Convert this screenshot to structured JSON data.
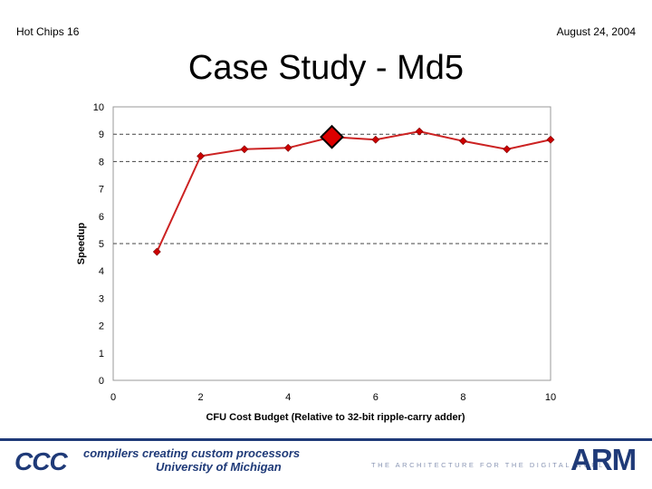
{
  "header": {
    "left": "Hot Chips 16",
    "right": "August 24, 2004"
  },
  "slide_title": "Case Study - Md5",
  "footer": {
    "logo_ccc": "CCC",
    "line1": "compilers creating custom processors",
    "line2": "University of Michigan",
    "tagline": "THE ARCHITECTURE FOR THE DIGITAL WORLD",
    "arm": "ARM"
  },
  "colors": {
    "line": "#cc2222",
    "marker": "#cc0000",
    "highlight": "#dd0000",
    "footer_blue": "#1f3a78"
  },
  "chart_data": {
    "type": "line",
    "title": "",
    "xlabel": "CFU Cost Budget (Relative to 32-bit ripple-carry adder)",
    "ylabel": "Speedup",
    "xlim": [
      0,
      10
    ],
    "ylim": [
      0,
      10
    ],
    "x_ticks": [
      0,
      2,
      4,
      6,
      8,
      10
    ],
    "y_ticks": [
      0,
      1,
      2,
      3,
      4,
      5,
      6,
      7,
      8,
      9,
      10
    ],
    "dashed_gridlines_y": [
      5,
      8,
      9
    ],
    "grid": false,
    "series": [
      {
        "x": [
          1,
          2,
          3,
          4,
          5,
          6,
          7,
          8,
          9,
          10
        ],
        "y": [
          4.7,
          8.2,
          8.45,
          8.5,
          8.9,
          8.8,
          9.1,
          8.75,
          8.45,
          8.8
        ]
      }
    ],
    "highlight_point": {
      "x": 5,
      "y": 8.9
    }
  }
}
